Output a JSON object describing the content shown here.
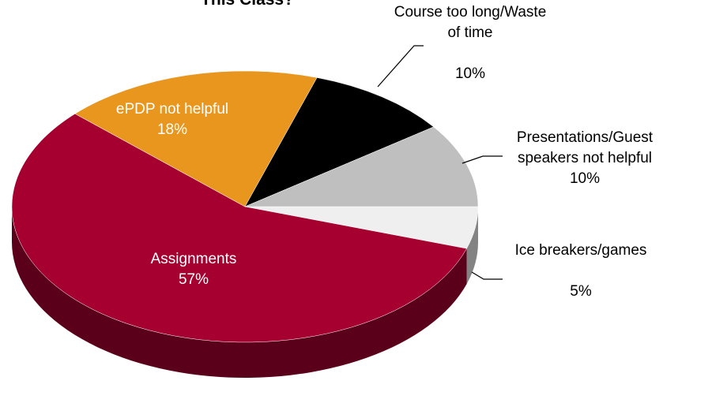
{
  "chart_data": {
    "type": "pie",
    "title": "This Class?",
    "categories": [
      "Ice breakers/games",
      "Assignments",
      "ePDP not helpful",
      "Course too long/Waste of time",
      "Presentations/Guest speakers not helpful"
    ],
    "values": [
      5,
      57,
      18,
      10,
      10
    ],
    "value_labels": [
      "5%",
      "57%",
      "18%",
      "10%",
      "10%"
    ],
    "colors": [
      "#efefef",
      "#a50030",
      "#e8961e",
      "#000000",
      "#bfbfbf"
    ],
    "start_angle": 0,
    "direction": "clockwise",
    "three_d": true
  }
}
